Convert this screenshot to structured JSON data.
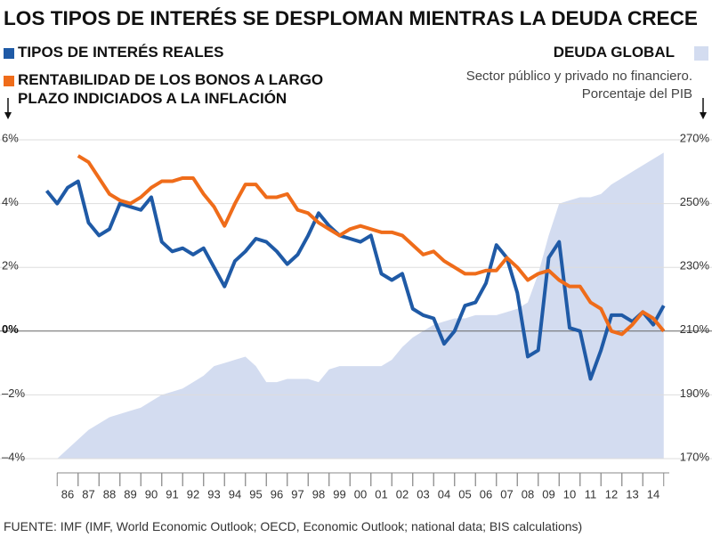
{
  "chart_data": {
    "type": "line",
    "title": "LOS TIPOS DE INTERÉS SE DESPLOMAN MIENTRAS LA DEUDA CRECE",
    "debt_note": [
      "Sector público y privado no financiero.",
      "Porcentaje del PIB"
    ],
    "source": "FUENTE: IMF (IMF, World Economic Outlook; OECD, Economic Outlook; national data; BIS calculations)",
    "categories": [
      null,
      null,
      "86",
      null,
      "87",
      null,
      "88",
      null,
      "89",
      null,
      "90",
      null,
      "91",
      null,
      "92",
      null,
      "93",
      null,
      "94",
      null,
      "95",
      null,
      "96",
      null,
      "97",
      null,
      "98",
      null,
      "99",
      null,
      "00",
      null,
      "01",
      null,
      "02",
      null,
      "03",
      null,
      "04",
      null,
      "05",
      null,
      "06",
      null,
      "07",
      null,
      "08",
      null,
      "09",
      null,
      "10",
      null,
      "11",
      null,
      "12",
      null,
      "13",
      null,
      "14",
      null
    ],
    "series": [
      {
        "name": "DEUDA GLOBAL",
        "color": "#d3dcf0",
        "axis": "y2",
        "kind": "area",
        "values": [
          null,
          170,
          173,
          176,
          179,
          181,
          183,
          184,
          185,
          186,
          188,
          190,
          191,
          192,
          194,
          196,
          199,
          200,
          201,
          202,
          199,
          194,
          194,
          195,
          195,
          195,
          194,
          198,
          199,
          199,
          199,
          199,
          199,
          201,
          205,
          208,
          210,
          212,
          213,
          214,
          214,
          215,
          215,
          215,
          216,
          217,
          219,
          228,
          240,
          250,
          251,
          252,
          252,
          253,
          256,
          258,
          260,
          262,
          264,
          266
        ]
      },
      {
        "name": "TIPOS DE INTERÉS REALES",
        "color": "#1f5aa6",
        "kind": "line",
        "values": [
          4.4,
          4.0,
          4.5,
          4.7,
          3.4,
          3.0,
          3.2,
          4.0,
          3.9,
          3.8,
          4.2,
          2.8,
          2.5,
          2.6,
          2.4,
          2.6,
          2.0,
          1.4,
          2.2,
          2.5,
          2.9,
          2.8,
          2.5,
          2.1,
          2.4,
          3.0,
          3.7,
          3.3,
          3.0,
          2.9,
          2.8,
          3.0,
          1.8,
          1.6,
          1.8,
          0.7,
          0.5,
          0.4,
          -0.4,
          0.0,
          0.8,
          0.9,
          1.5,
          2.7,
          2.3,
          1.2,
          -0.8,
          -0.6,
          2.3,
          2.8,
          0.1,
          0.0,
          -1.5,
          -0.6,
          0.5,
          0.5,
          0.3,
          0.6,
          0.2,
          0.8
        ]
      },
      {
        "name": "RENTABILIDAD DE LOS BONOS A LARGO PLAZO INDICIADOS A LA INFLACIÓN",
        "color": "#ef6c1a",
        "kind": "line",
        "values": [
          null,
          null,
          null,
          5.5,
          5.3,
          4.8,
          4.3,
          4.1,
          4.0,
          4.2,
          4.5,
          4.7,
          4.7,
          4.8,
          4.8,
          4.3,
          3.9,
          3.3,
          4.0,
          4.6,
          4.6,
          4.2,
          4.2,
          4.3,
          3.8,
          3.7,
          3.4,
          3.2,
          3.0,
          3.2,
          3.3,
          3.2,
          3.1,
          3.1,
          3.0,
          2.7,
          2.4,
          2.5,
          2.2,
          2.0,
          1.8,
          1.8,
          1.9,
          1.9,
          2.3,
          2.0,
          1.6,
          1.8,
          1.9,
          1.6,
          1.4,
          1.4,
          0.9,
          0.7,
          0.0,
          -0.1,
          0.2,
          0.6,
          0.4,
          0.0
        ]
      }
    ],
    "ylim": [
      -4,
      6
    ],
    "yticks": [
      {
        "value": -4,
        "label": "–4%"
      },
      {
        "value": -2,
        "label": "–2%"
      },
      {
        "value": 0,
        "label": "0%"
      },
      {
        "value": 2,
        "label": "2%"
      },
      {
        "value": 4,
        "label": "4%"
      },
      {
        "value": 6,
        "label": "6%"
      }
    ],
    "y2lim": [
      170,
      270
    ],
    "y2ticks": [
      {
        "value": 170,
        "label": "170%"
      },
      {
        "value": 190,
        "label": "190%"
      },
      {
        "value": 210,
        "label": "210%"
      },
      {
        "value": 230,
        "label": "230%"
      },
      {
        "value": 250,
        "label": "250%"
      },
      {
        "value": 270,
        "label": "270%"
      }
    ],
    "grid": true
  }
}
